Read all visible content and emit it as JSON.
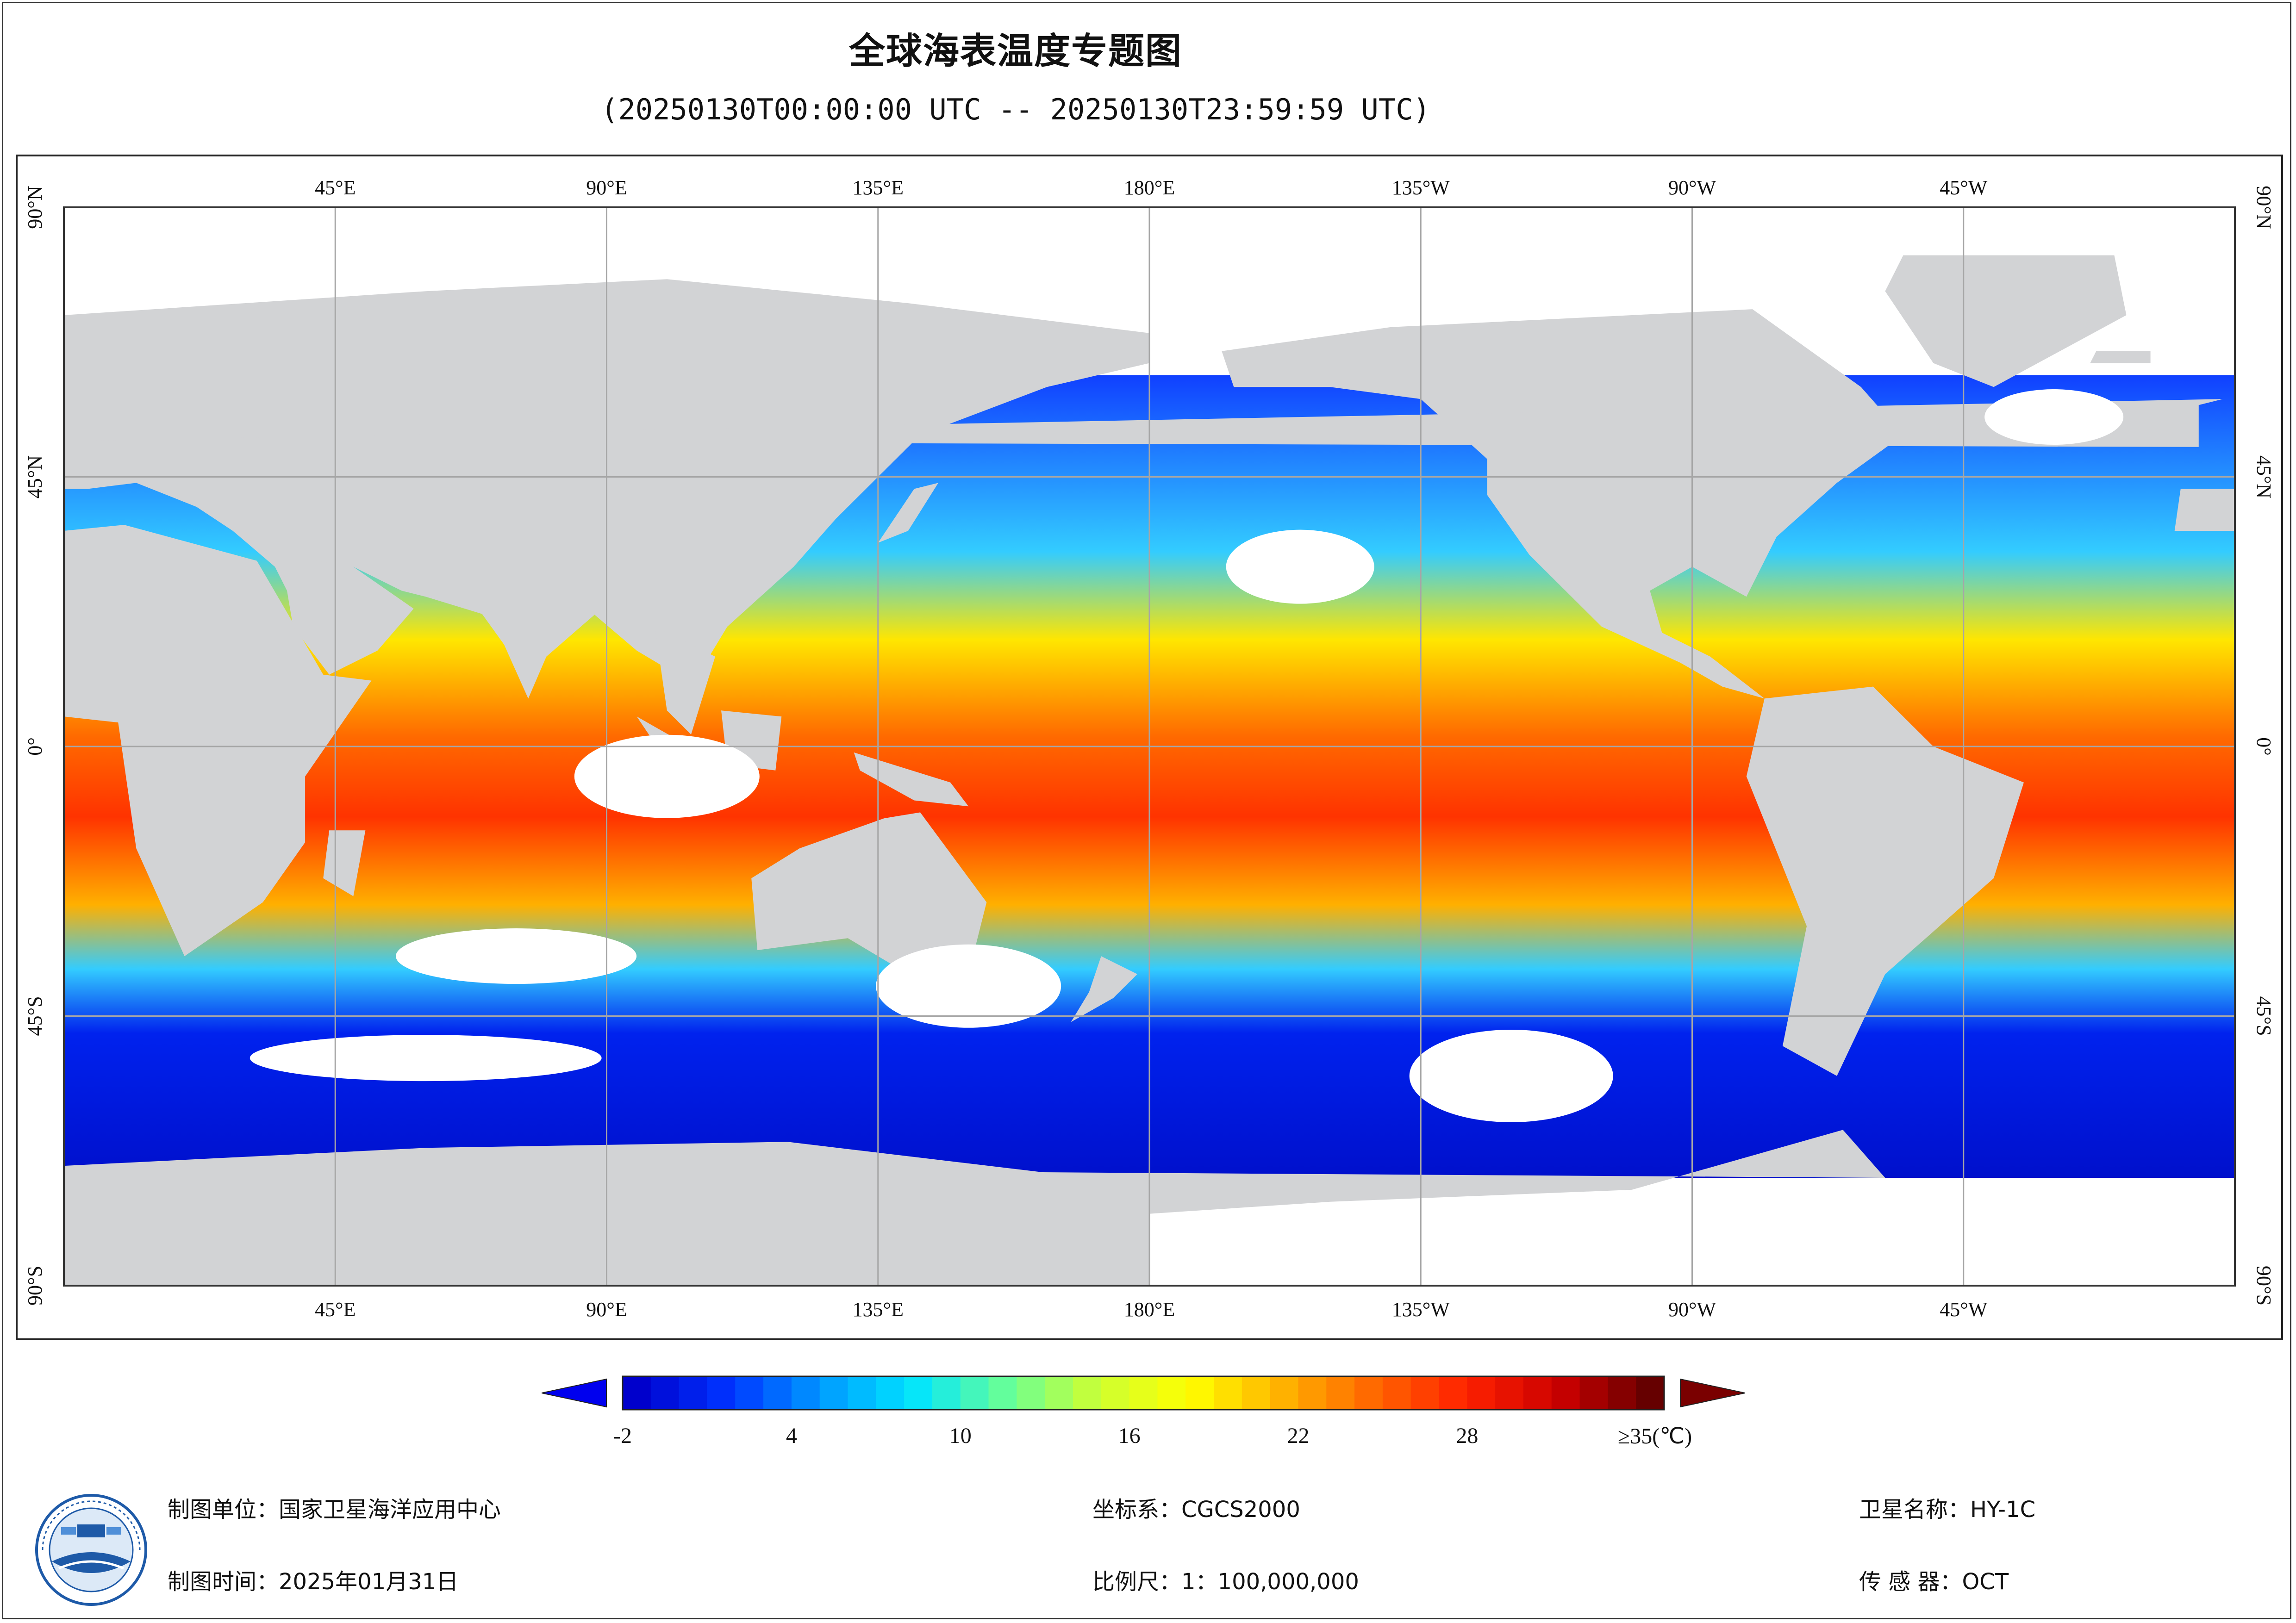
{
  "title": "全球海表温度专题图",
  "subtitle": "(20250130T00:00:00 UTC -- 20250130T23:59:59 UTC)",
  "axis": {
    "top_labels": [
      "45°E",
      "90°E",
      "135°E",
      "180°E",
      "135°W",
      "90°W",
      "45°W"
    ],
    "bottom_labels": [
      "45°E",
      "90°E",
      "135°E",
      "180°E",
      "135°W",
      "90°W",
      "45°W"
    ],
    "left_labels": [
      "90°N",
      "45°N",
      "0°",
      "45°S",
      "90°S"
    ],
    "right_labels": [
      "90°N",
      "45°N",
      "0°",
      "45°S",
      "90°S"
    ],
    "longitudes": [
      45,
      90,
      135,
      180,
      -135,
      -90,
      -45
    ],
    "latitudes": [
      90,
      45,
      0,
      -45,
      -90
    ],
    "lon_range": [
      0,
      360
    ],
    "lat_range": [
      -90,
      90
    ],
    "grid": true
  },
  "colorbar": {
    "labels": [
      "-2",
      "4",
      "10",
      "16",
      "22",
      "28",
      "≥35(℃)"
    ],
    "values": [
      -2,
      4,
      10,
      16,
      22,
      28,
      35
    ],
    "range": [
      -2,
      35
    ],
    "extend": "both",
    "stops": [
      "#0000cc",
      "#0033ff",
      "#0099ff",
      "#00e5ff",
      "#66ff99",
      "#ccff33",
      "#ffff00",
      "#ffb300",
      "#ff6600",
      "#ff2200",
      "#cc0000",
      "#660000"
    ]
  },
  "colors": {
    "land": "#d2d3d5",
    "no_data": "#ffffff",
    "grid": "#a6a6a6",
    "frame": "#222222"
  },
  "footer": {
    "org": "制图单位：国家卫星海洋应用中心",
    "date": "制图时间：2025年01月31日",
    "crs": "坐标系：CGCS2000",
    "scale": "比例尺：1：100,000,000",
    "satellite": "卫星名称：HY-1C",
    "sensor": "传 感 器：OCT"
  }
}
